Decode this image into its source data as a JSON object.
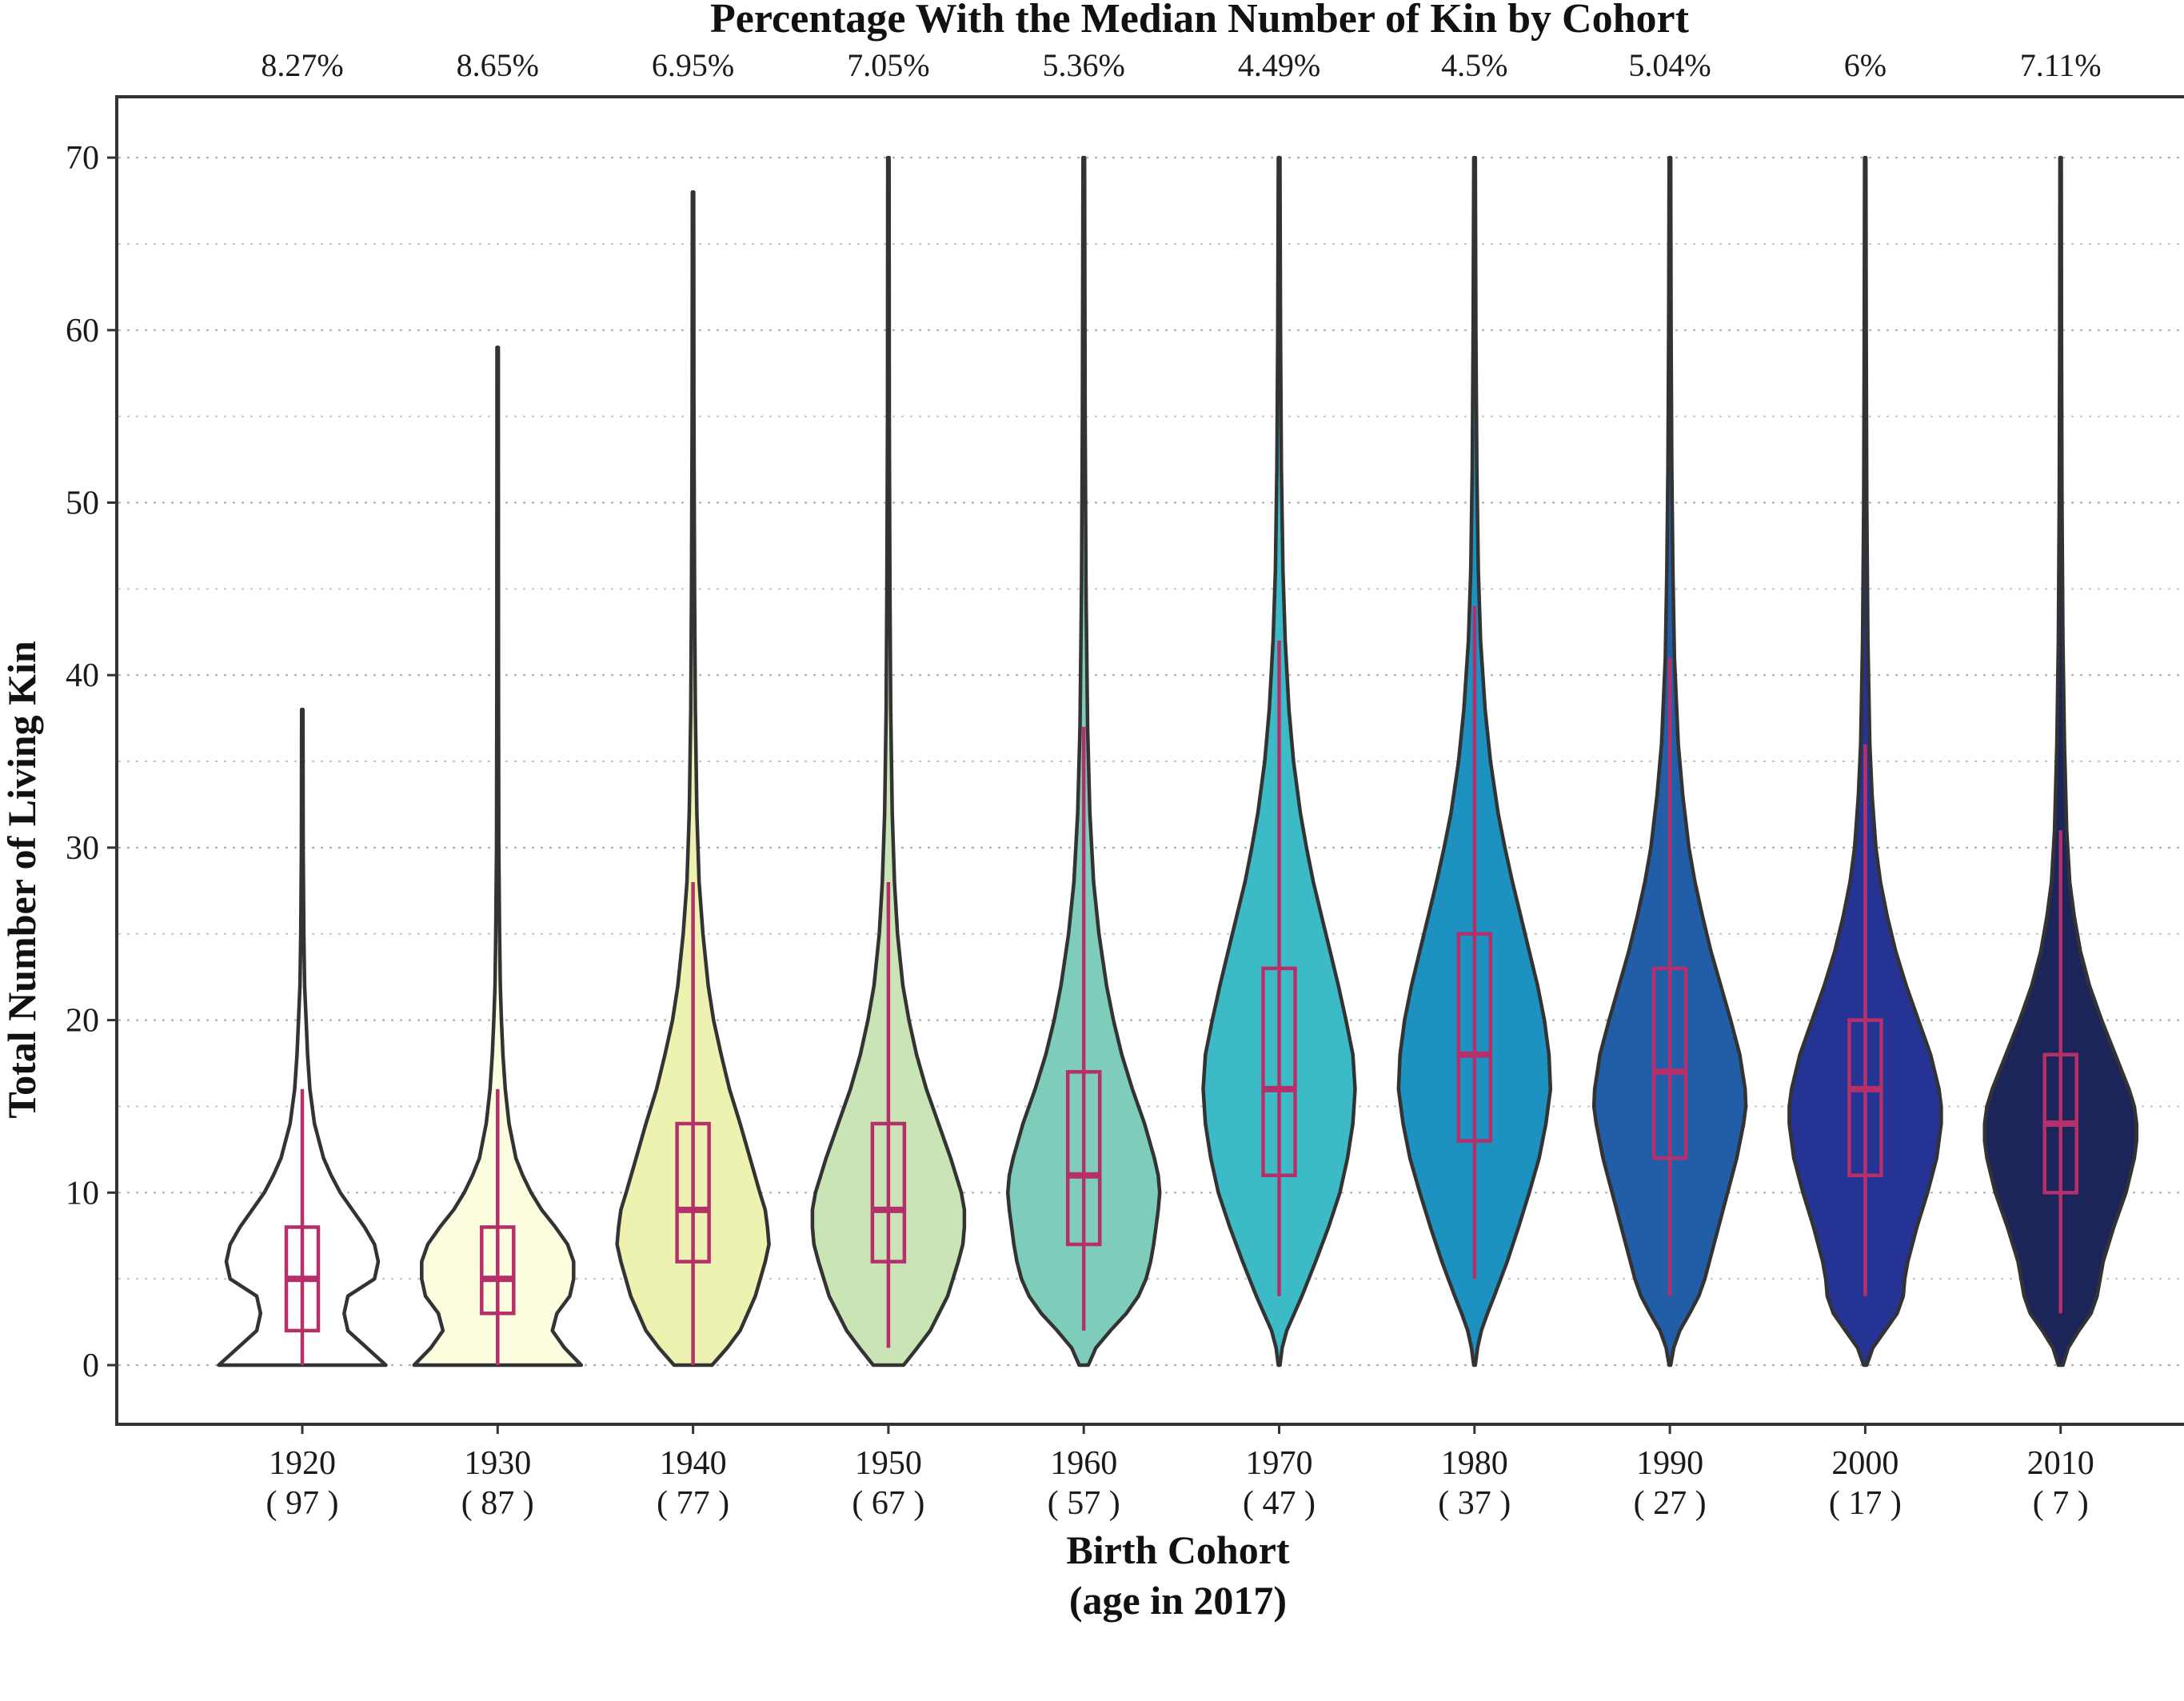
{
  "chart_data": {
    "type": "violin",
    "title": "Percentage With the Median Number of Kin by Cohort",
    "xlabel_line1": "Birth Cohort",
    "xlabel_line2": "(age in 2017)",
    "ylabel": "Total Number of Living Kin",
    "ylim": [
      -3.5,
      70
    ],
    "yticks": [
      0,
      10,
      20,
      30,
      40,
      50,
      60,
      70
    ],
    "minor_grid": [
      5,
      15,
      25,
      35,
      45,
      55,
      65
    ],
    "grid": true,
    "box_color": "#b5306a",
    "outline_color": "#333333",
    "cohorts": [
      {
        "label": "1920",
        "age": "( 97 )",
        "pct": "8.27%",
        "fill": "#ffffff",
        "q1": 2,
        "median": 5,
        "q3": 8,
        "wlo": 0,
        "whi": 16,
        "max": 38,
        "profile": [
          [
            0,
            1.1
          ],
          [
            1,
            0.85
          ],
          [
            2,
            0.6
          ],
          [
            3,
            0.55
          ],
          [
            4,
            0.6
          ],
          [
            5,
            0.95
          ],
          [
            6,
            1.0
          ],
          [
            7,
            0.95
          ],
          [
            8,
            0.82
          ],
          [
            9,
            0.66
          ],
          [
            10,
            0.5
          ],
          [
            11,
            0.38
          ],
          [
            12,
            0.28
          ],
          [
            14,
            0.16
          ],
          [
            16,
            0.1
          ],
          [
            18,
            0.07
          ],
          [
            20,
            0.05
          ],
          [
            22,
            0.03
          ],
          [
            25,
            0.02
          ],
          [
            30,
            0.012
          ],
          [
            38,
            0.008
          ]
        ]
      },
      {
        "label": "1930",
        "age": "( 87 )",
        "pct": "8.65%",
        "fill": "#fdfde0",
        "q1": 3,
        "median": 5,
        "q3": 8,
        "wlo": 0,
        "whi": 16,
        "max": 59,
        "profile": [
          [
            0,
            1.1
          ],
          [
            1,
            0.88
          ],
          [
            2,
            0.72
          ],
          [
            3,
            0.78
          ],
          [
            4,
            0.95
          ],
          [
            5,
            1.0
          ],
          [
            6,
            1.0
          ],
          [
            7,
            0.92
          ],
          [
            8,
            0.76
          ],
          [
            9,
            0.58
          ],
          [
            10,
            0.44
          ],
          [
            11,
            0.33
          ],
          [
            12,
            0.24
          ],
          [
            14,
            0.15
          ],
          [
            16,
            0.1
          ],
          [
            18,
            0.07
          ],
          [
            20,
            0.05
          ],
          [
            22,
            0.035
          ],
          [
            25,
            0.025
          ],
          [
            30,
            0.015
          ],
          [
            40,
            0.01
          ],
          [
            59,
            0.008
          ]
        ]
      },
      {
        "label": "1940",
        "age": "( 77 )",
        "pct": "6.95%",
        "fill": "#eef2b0",
        "q1": 6,
        "median": 9,
        "q3": 14,
        "wlo": 0,
        "whi": 28,
        "max": 68,
        "profile": [
          [
            0,
            0.25
          ],
          [
            1,
            0.45
          ],
          [
            2,
            0.62
          ],
          [
            4,
            0.82
          ],
          [
            6,
            0.95
          ],
          [
            7,
            1.0
          ],
          [
            8,
            0.98
          ],
          [
            9,
            0.95
          ],
          [
            10,
            0.88
          ],
          [
            12,
            0.75
          ],
          [
            14,
            0.62
          ],
          [
            16,
            0.48
          ],
          [
            18,
            0.37
          ],
          [
            20,
            0.27
          ],
          [
            22,
            0.2
          ],
          [
            25,
            0.13
          ],
          [
            28,
            0.08
          ],
          [
            32,
            0.05
          ],
          [
            38,
            0.03
          ],
          [
            45,
            0.02
          ],
          [
            55,
            0.012
          ],
          [
            68,
            0.008
          ]
        ]
      },
      {
        "label": "1950",
        "age": "( 67 )",
        "pct": "7.05%",
        "fill": "#c9e4b5",
        "q1": 6,
        "median": 9,
        "q3": 14,
        "wlo": 1,
        "whi": 28,
        "max": 70,
        "profile": [
          [
            0,
            0.2
          ],
          [
            1,
            0.38
          ],
          [
            2,
            0.55
          ],
          [
            4,
            0.78
          ],
          [
            6,
            0.92
          ],
          [
            7,
            0.98
          ],
          [
            8,
            1.0
          ],
          [
            9,
            1.0
          ],
          [
            10,
            0.96
          ],
          [
            12,
            0.82
          ],
          [
            14,
            0.66
          ],
          [
            16,
            0.5
          ],
          [
            18,
            0.37
          ],
          [
            20,
            0.27
          ],
          [
            22,
            0.19
          ],
          [
            25,
            0.12
          ],
          [
            28,
            0.08
          ],
          [
            32,
            0.05
          ],
          [
            38,
            0.03
          ],
          [
            45,
            0.02
          ],
          [
            55,
            0.012
          ],
          [
            70,
            0.008
          ]
        ]
      },
      {
        "label": "1960",
        "age": "( 57 )",
        "pct": "5.36%",
        "fill": "#7ecdbb",
        "q1": 7,
        "median": 11,
        "q3": 17,
        "wlo": 2,
        "whi": 37,
        "max": 70,
        "profile": [
          [
            0,
            0.06
          ],
          [
            1,
            0.16
          ],
          [
            2,
            0.35
          ],
          [
            3,
            0.56
          ],
          [
            4,
            0.72
          ],
          [
            5,
            0.82
          ],
          [
            6,
            0.88
          ],
          [
            7,
            0.92
          ],
          [
            8,
            0.95
          ],
          [
            9,
            0.98
          ],
          [
            10,
            1.0
          ],
          [
            11,
            0.98
          ],
          [
            12,
            0.93
          ],
          [
            14,
            0.8
          ],
          [
            16,
            0.64
          ],
          [
            18,
            0.5
          ],
          [
            20,
            0.39
          ],
          [
            22,
            0.3
          ],
          [
            25,
            0.2
          ],
          [
            28,
            0.13
          ],
          [
            32,
            0.08
          ],
          [
            37,
            0.05
          ],
          [
            45,
            0.03
          ],
          [
            55,
            0.018
          ],
          [
            70,
            0.01
          ]
        ]
      },
      {
        "label": "1970",
        "age": "( 47 )",
        "pct": "4.49%",
        "fill": "#3cbac5",
        "q1": 11,
        "median": 16,
        "q3": 23,
        "wlo": 4,
        "whi": 42,
        "max": 70,
        "profile": [
          [
            0,
            0.01
          ],
          [
            1,
            0.04
          ],
          [
            2,
            0.1
          ],
          [
            3,
            0.2
          ],
          [
            4,
            0.3
          ],
          [
            6,
            0.48
          ],
          [
            8,
            0.65
          ],
          [
            10,
            0.8
          ],
          [
            12,
            0.9
          ],
          [
            14,
            0.97
          ],
          [
            16,
            1.0
          ],
          [
            18,
            0.97
          ],
          [
            20,
            0.88
          ],
          [
            22,
            0.78
          ],
          [
            24,
            0.67
          ],
          [
            26,
            0.56
          ],
          [
            28,
            0.45
          ],
          [
            30,
            0.36
          ],
          [
            32,
            0.28
          ],
          [
            35,
            0.19
          ],
          [
            38,
            0.13
          ],
          [
            42,
            0.08
          ],
          [
            46,
            0.05
          ],
          [
            52,
            0.03
          ],
          [
            60,
            0.018
          ],
          [
            70,
            0.01
          ]
        ]
      },
      {
        "label": "1980",
        "age": "( 37 )",
        "pct": "4.5%",
        "fill": "#1d91c0",
        "q1": 13,
        "median": 18,
        "q3": 25,
        "wlo": 5,
        "whi": 44,
        "max": 70,
        "profile": [
          [
            0,
            0.01
          ],
          [
            1,
            0.04
          ],
          [
            2,
            0.09
          ],
          [
            3,
            0.17
          ],
          [
            4,
            0.26
          ],
          [
            6,
            0.43
          ],
          [
            8,
            0.58
          ],
          [
            10,
            0.72
          ],
          [
            12,
            0.85
          ],
          [
            14,
            0.94
          ],
          [
            16,
            1.0
          ],
          [
            18,
            0.98
          ],
          [
            20,
            0.92
          ],
          [
            22,
            0.83
          ],
          [
            24,
            0.72
          ],
          [
            26,
            0.61
          ],
          [
            28,
            0.5
          ],
          [
            30,
            0.4
          ],
          [
            32,
            0.31
          ],
          [
            35,
            0.21
          ],
          [
            38,
            0.14
          ],
          [
            42,
            0.08
          ],
          [
            46,
            0.05
          ],
          [
            52,
            0.03
          ],
          [
            60,
            0.018
          ],
          [
            70,
            0.01
          ]
        ]
      },
      {
        "label": "1990",
        "age": "( 27 )",
        "pct": "5.04%",
        "fill": "#225ea8",
        "q1": 12,
        "median": 17,
        "q3": 23,
        "wlo": 4,
        "whi": 41,
        "max": 70,
        "profile": [
          [
            0,
            0.01
          ],
          [
            1,
            0.05
          ],
          [
            2,
            0.13
          ],
          [
            3,
            0.26
          ],
          [
            4,
            0.38
          ],
          [
            5,
            0.46
          ],
          [
            6,
            0.52
          ],
          [
            8,
            0.64
          ],
          [
            10,
            0.76
          ],
          [
            12,
            0.88
          ],
          [
            14,
            0.97
          ],
          [
            15,
            1.0
          ],
          [
            16,
            0.99
          ],
          [
            18,
            0.92
          ],
          [
            20,
            0.8
          ],
          [
            22,
            0.67
          ],
          [
            24,
            0.54
          ],
          [
            26,
            0.43
          ],
          [
            28,
            0.33
          ],
          [
            30,
            0.25
          ],
          [
            33,
            0.17
          ],
          [
            36,
            0.11
          ],
          [
            41,
            0.06
          ],
          [
            46,
            0.04
          ],
          [
            52,
            0.025
          ],
          [
            60,
            0.016
          ],
          [
            70,
            0.01
          ]
        ]
      },
      {
        "label": "2000",
        "age": "( 17 )",
        "pct": "6%",
        "fill": "#253494",
        "q1": 11,
        "median": 16,
        "q3": 20,
        "wlo": 4,
        "whi": 36,
        "max": 70,
        "profile": [
          [
            0,
            0.02
          ],
          [
            1,
            0.1
          ],
          [
            2,
            0.26
          ],
          [
            3,
            0.42
          ],
          [
            4,
            0.5
          ],
          [
            5,
            0.52
          ],
          [
            6,
            0.56
          ],
          [
            8,
            0.68
          ],
          [
            10,
            0.82
          ],
          [
            12,
            0.94
          ],
          [
            14,
            1.0
          ],
          [
            15,
            1.0
          ],
          [
            16,
            0.97
          ],
          [
            18,
            0.86
          ],
          [
            20,
            0.7
          ],
          [
            22,
            0.54
          ],
          [
            24,
            0.4
          ],
          [
            26,
            0.29
          ],
          [
            28,
            0.2
          ],
          [
            30,
            0.14
          ],
          [
            33,
            0.09
          ],
          [
            36,
            0.06
          ],
          [
            42,
            0.035
          ],
          [
            50,
            0.02
          ],
          [
            60,
            0.013
          ],
          [
            70,
            0.008
          ]
        ]
      },
      {
        "label": "2010",
        "age": "( 7 )",
        "pct": "7.11%",
        "fill": "#1b2559",
        "q1": 10,
        "median": 14,
        "q3": 18,
        "wlo": 3,
        "whi": 31,
        "max": 70,
        "profile": [
          [
            0,
            0.03
          ],
          [
            1,
            0.1
          ],
          [
            2,
            0.24
          ],
          [
            3,
            0.4
          ],
          [
            4,
            0.48
          ],
          [
            5,
            0.52
          ],
          [
            6,
            0.56
          ],
          [
            8,
            0.7
          ],
          [
            10,
            0.86
          ],
          [
            12,
            0.97
          ],
          [
            13,
            1.0
          ],
          [
            14,
            1.0
          ],
          [
            15,
            0.97
          ],
          [
            16,
            0.9
          ],
          [
            18,
            0.72
          ],
          [
            20,
            0.54
          ],
          [
            22,
            0.38
          ],
          [
            24,
            0.26
          ],
          [
            26,
            0.18
          ],
          [
            28,
            0.12
          ],
          [
            31,
            0.08
          ],
          [
            36,
            0.05
          ],
          [
            42,
            0.03
          ],
          [
            50,
            0.018
          ],
          [
            60,
            0.012
          ],
          [
            70,
            0.008
          ]
        ]
      }
    ]
  }
}
